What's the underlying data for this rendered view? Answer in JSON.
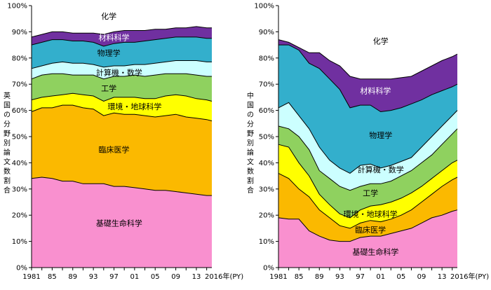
{
  "colors": {
    "基礎生命科学": "#f990cf",
    "臨床医学": "#fbb900",
    "環境・地球科学": "#ffff00",
    "工学": "#8fd15f",
    "計算機・数学": "#ccffff",
    "物理学": "#33afcc",
    "材料科学": "#7030a0",
    "化学": "#ffffff"
  },
  "chart_data": [
    {
      "type": "area",
      "stacking": "cumulative",
      "ylabel": "英国の分野別論文数割合",
      "ylim": [
        0,
        100
      ],
      "yticks": [
        "0%",
        "10%",
        "20%",
        "30%",
        "40%",
        "50%",
        "60%",
        "70%",
        "80%",
        "90%",
        "100%"
      ],
      "x": [
        1981,
        1983,
        1985,
        1987,
        1989,
        1991,
        1993,
        1995,
        1997,
        1999,
        2001,
        2003,
        2005,
        2007,
        2009,
        2011,
        2013,
        2015,
        2016
      ],
      "xticks": [
        "1981",
        "85",
        "89",
        "93",
        "97",
        "01",
        "05",
        "09",
        "13",
        "2016年(PY)"
      ],
      "series": [
        {
          "name": "基礎生命科学",
          "values": [
            34,
            34.5,
            34,
            33,
            33,
            32,
            32,
            32,
            31,
            31,
            30.5,
            30,
            29.5,
            29.5,
            29,
            28.5,
            28,
            27.5,
            27.5
          ]
        },
        {
          "name": "臨床医学",
          "values": [
            59.5,
            61,
            61,
            62,
            62,
            61,
            60.5,
            58,
            59,
            58.5,
            58.5,
            58,
            57.5,
            58,
            58.5,
            57.5,
            57,
            56.5,
            56
          ]
        },
        {
          "name": "環境・地球科学",
          "values": [
            64,
            65,
            65.5,
            66,
            66.5,
            66,
            65.5,
            63.5,
            65,
            65,
            65,
            64.5,
            64.5,
            65.5,
            66,
            65.5,
            64.5,
            64,
            63.5
          ]
        },
        {
          "name": "工学",
          "values": [
            72,
            73.5,
            74,
            74,
            73.5,
            73.5,
            73.5,
            72,
            73,
            73,
            73.5,
            73,
            73.5,
            74,
            74,
            74,
            73.5,
            73,
            73
          ]
        },
        {
          "name": "計算機・数学",
          "values": [
            76,
            77,
            78,
            78.5,
            78,
            78,
            77.5,
            76.5,
            77,
            77,
            77.5,
            77.5,
            78,
            78.5,
            79,
            79,
            79,
            78.5,
            78.5
          ]
        },
        {
          "name": "物理学",
          "values": [
            85,
            86,
            87,
            87,
            86.5,
            86.5,
            86,
            84.5,
            85.5,
            86,
            86,
            86.5,
            87,
            87.5,
            88,
            88,
            88,
            87.5,
            87.5
          ]
        },
        {
          "name": "材料科学",
          "values": [
            88,
            89,
            90,
            90,
            89.5,
            89.5,
            89.5,
            89,
            90,
            90.5,
            90.5,
            90.5,
            91,
            91,
            91.5,
            91.5,
            92,
            91.5,
            91.5
          ]
        },
        {
          "name": "化学",
          "values": [
            100,
            100,
            100,
            100,
            100,
            100,
            100,
            100,
            100,
            100,
            100,
            100,
            100,
            100,
            100,
            100,
            100,
            100,
            100
          ]
        }
      ]
    },
    {
      "type": "area",
      "stacking": "cumulative",
      "ylabel": "中国の分野別論文数割合",
      "ylim": [
        0,
        100
      ],
      "yticks": [
        "0%",
        "10%",
        "20%",
        "30%",
        "40%",
        "50%",
        "60%",
        "70%",
        "80%",
        "90%",
        "100%"
      ],
      "x": [
        1981,
        1983,
        1985,
        1987,
        1989,
        1991,
        1993,
        1995,
        1997,
        1999,
        2001,
        2003,
        2005,
        2007,
        2009,
        2011,
        2013,
        2015,
        2016
      ],
      "xticks": [
        "1981",
        "85",
        "89",
        "93",
        "97",
        "01",
        "05",
        "09",
        "13",
        "2016年(PY)"
      ],
      "series": [
        {
          "name": "基礎生命科学",
          "values": [
            19,
            18.5,
            18.5,
            14,
            12,
            10.5,
            10,
            10,
            11.5,
            12,
            12,
            13,
            14,
            15,
            17,
            19,
            20,
            21.5,
            22
          ]
        },
        {
          "name": "臨床医学",
          "values": [
            36,
            34,
            30,
            27,
            22,
            19,
            16,
            15,
            17,
            18,
            17.5,
            18.5,
            20,
            22,
            25,
            28,
            31,
            33.5,
            34.5
          ]
        },
        {
          "name": "環境・地球科学",
          "values": [
            47,
            46,
            40,
            35,
            28,
            24,
            20.5,
            19,
            22,
            23.5,
            24,
            25,
            26.5,
            28.5,
            31,
            34,
            37,
            40,
            41
          ]
        },
        {
          "name": "工学",
          "values": [
            54,
            53,
            50,
            45,
            37,
            34,
            31,
            29.5,
            31,
            32,
            32,
            33,
            35,
            37,
            40,
            43,
            47,
            51,
            53
          ]
        },
        {
          "name": "計算機・数学",
          "values": [
            61,
            63,
            58,
            53,
            46,
            41,
            38,
            36,
            39,
            39.5,
            38,
            39,
            40.5,
            42,
            46,
            50,
            54,
            58,
            60
          ]
        },
        {
          "name": "物理学",
          "values": [
            85,
            85,
            83,
            78,
            76,
            72,
            68,
            61,
            62,
            62,
            59.5,
            60,
            61,
            62.5,
            64,
            66,
            67.5,
            69,
            70
          ]
        },
        {
          "name": "材料科学",
          "values": [
            87,
            86,
            84,
            82,
            82,
            79,
            77,
            73,
            72,
            72,
            72,
            72,
            72.5,
            73,
            75,
            77,
            79,
            80.5,
            81.5
          ]
        },
        {
          "name": "化学",
          "values": [
            100,
            100,
            100,
            100,
            100,
            100,
            100,
            100,
            100,
            100,
            100,
            100,
            100,
            100,
            100,
            100,
            100,
            100,
            100
          ]
        }
      ]
    }
  ]
}
